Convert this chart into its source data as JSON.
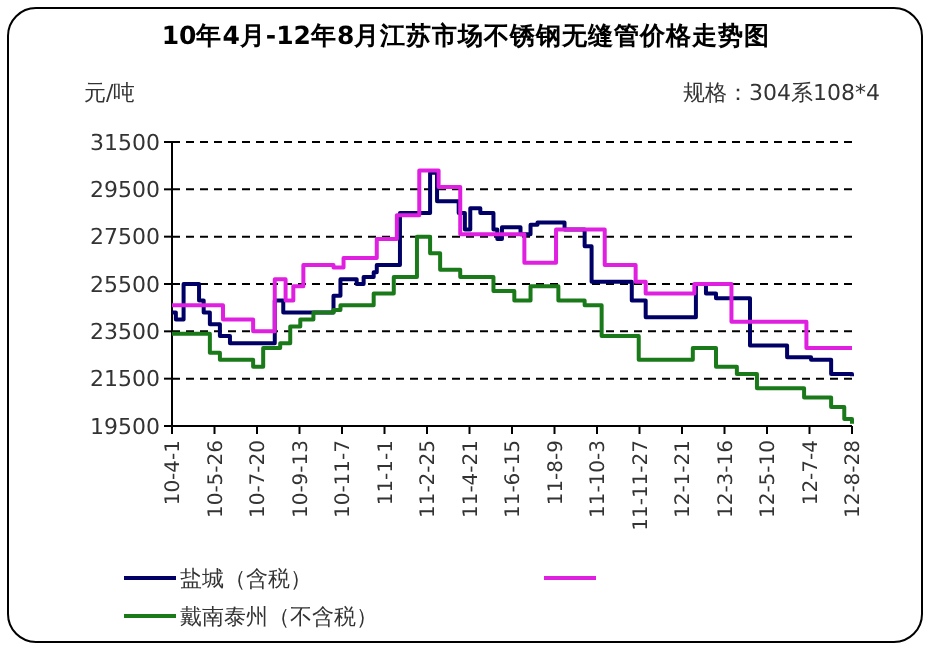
{
  "chart_data": {
    "type": "step",
    "title": "10年4月-12年8月江苏市场不锈钢无缝管价格走势图",
    "ylabel": "元/吨",
    "annotations": [
      "规格：304系108*4"
    ],
    "xlim": [
      "2010-04-01",
      "2012-08-28"
    ],
    "xticks": [
      {
        "value": "2010-04-01",
        "label": "10-4-1"
      },
      {
        "value": "2010-05-26",
        "label": "10-5-26"
      },
      {
        "value": "2010-07-20",
        "label": "10-7-20"
      },
      {
        "value": "2010-09-13",
        "label": "10-9-13"
      },
      {
        "value": "2010-11-07",
        "label": "10-11-7"
      },
      {
        "value": "2011-01-01",
        "label": "11-1-1"
      },
      {
        "value": "2011-02-25",
        "label": "11-2-25"
      },
      {
        "value": "2011-04-21",
        "label": "11-4-21"
      },
      {
        "value": "2011-06-15",
        "label": "11-6-15"
      },
      {
        "value": "2011-08-09",
        "label": "11-8-9"
      },
      {
        "value": "2011-10-03",
        "label": "11-10-3"
      },
      {
        "value": "2011-11-27",
        "label": "11-11-27"
      },
      {
        "value": "2012-01-21",
        "label": "12-1-21"
      },
      {
        "value": "2012-03-16",
        "label": "12-3-16"
      },
      {
        "value": "2012-05-10",
        "label": "12-5-10"
      },
      {
        "value": "2012-07-04",
        "label": "12-7-4"
      },
      {
        "value": "2012-08-28",
        "label": "12-8-28"
      }
    ],
    "ylim": [
      19500,
      31500
    ],
    "yticks": [
      19500,
      21500,
      23500,
      25500,
      27500,
      29500,
      31500
    ],
    "grid": "y",
    "legend": "bottom",
    "marker": "none",
    "series": [
      {
        "name": "盐城（含税）",
        "color": "#000066",
        "x": [
          "2010-04-01",
          "2010-04-06",
          "2010-04-16",
          "2010-05-06",
          "2010-05-12",
          "2010-05-20",
          "2010-06-02",
          "2010-06-15",
          "2010-08-12",
          "2010-08-23",
          "2010-10-27",
          "2010-11-05",
          "2010-11-26",
          "2010-12-05",
          "2010-12-18",
          "2010-12-22",
          "2011-01-21",
          "2011-03-01",
          "2011-03-10",
          "2011-04-07",
          "2011-04-15",
          "2011-04-22",
          "2011-05-05",
          "2011-05-22",
          "2011-05-27",
          "2011-06-02",
          "2011-06-26",
          "2011-07-09",
          "2011-07-18",
          "2011-08-22",
          "2011-09-17",
          "2011-09-26",
          "2011-11-17",
          "2011-12-05",
          "2012-02-08",
          "2012-02-21",
          "2012-03-05",
          "2012-04-18",
          "2012-06-05",
          "2012-07-06",
          "2012-08-01",
          "2012-08-28"
        ],
        "values": [
          24300,
          24000,
          25500,
          24800,
          24300,
          23800,
          23300,
          23000,
          24800,
          24300,
          25000,
          25700,
          25500,
          25800,
          26000,
          26300,
          28500,
          30200,
          29000,
          28500,
          27800,
          28700,
          28500,
          27800,
          27400,
          27900,
          27600,
          28000,
          28100,
          27800,
          27100,
          25600,
          24800,
          24100,
          25500,
          25100,
          24900,
          22900,
          22400,
          22300,
          21700,
          21600
        ]
      },
      {
        "color": "#e020e0",
        "x": [
          "2010-04-01",
          "2010-06-06",
          "2010-07-15",
          "2010-08-12",
          "2010-08-26",
          "2010-09-05",
          "2010-09-18",
          "2010-10-27",
          "2010-11-09",
          "2010-12-22",
          "2011-01-17",
          "2011-02-15",
          "2011-03-12",
          "2011-04-09",
          "2011-07-01",
          "2011-08-11",
          "2011-10-13",
          "2011-11-22",
          "2011-12-05",
          "2012-02-06",
          "2012-03-25",
          "2012-06-30",
          "2012-08-28"
        ],
        "values": [
          24600,
          24000,
          23500,
          25700,
          24800,
          25400,
          26300,
          26200,
          26600,
          27400,
          28400,
          30300,
          29600,
          27600,
          26400,
          27800,
          26300,
          25600,
          25100,
          25500,
          23900,
          22800,
          22800
        ]
      },
      {
        "name": "戴南泰州（不含税）",
        "color": "#1a7a1a",
        "x": [
          "2010-04-01",
          "2010-05-20",
          "2010-06-02",
          "2010-07-15",
          "2010-07-28",
          "2010-08-19",
          "2010-09-01",
          "2010-09-14",
          "2010-10-01",
          "2010-10-27",
          "2010-11-05",
          "2010-12-18",
          "2011-01-13",
          "2011-02-12",
          "2011-03-01",
          "2011-03-14",
          "2011-04-09",
          "2011-05-22",
          "2011-06-18",
          "2011-07-09",
          "2011-08-14",
          "2011-09-17",
          "2011-10-09",
          "2011-11-26",
          "2012-02-04",
          "2012-03-05",
          "2012-04-01",
          "2012-04-27",
          "2012-06-27",
          "2012-08-01",
          "2012-08-18",
          "2012-08-28"
        ],
        "values": [
          23400,
          22600,
          22300,
          22000,
          22800,
          23000,
          23700,
          24000,
          24300,
          24400,
          24600,
          25100,
          25800,
          27500,
          26800,
          26100,
          25800,
          25200,
          24800,
          25400,
          24800,
          24600,
          23300,
          22300,
          22800,
          22000,
          21700,
          21100,
          20700,
          20300,
          19800,
          19600
        ]
      }
    ]
  }
}
